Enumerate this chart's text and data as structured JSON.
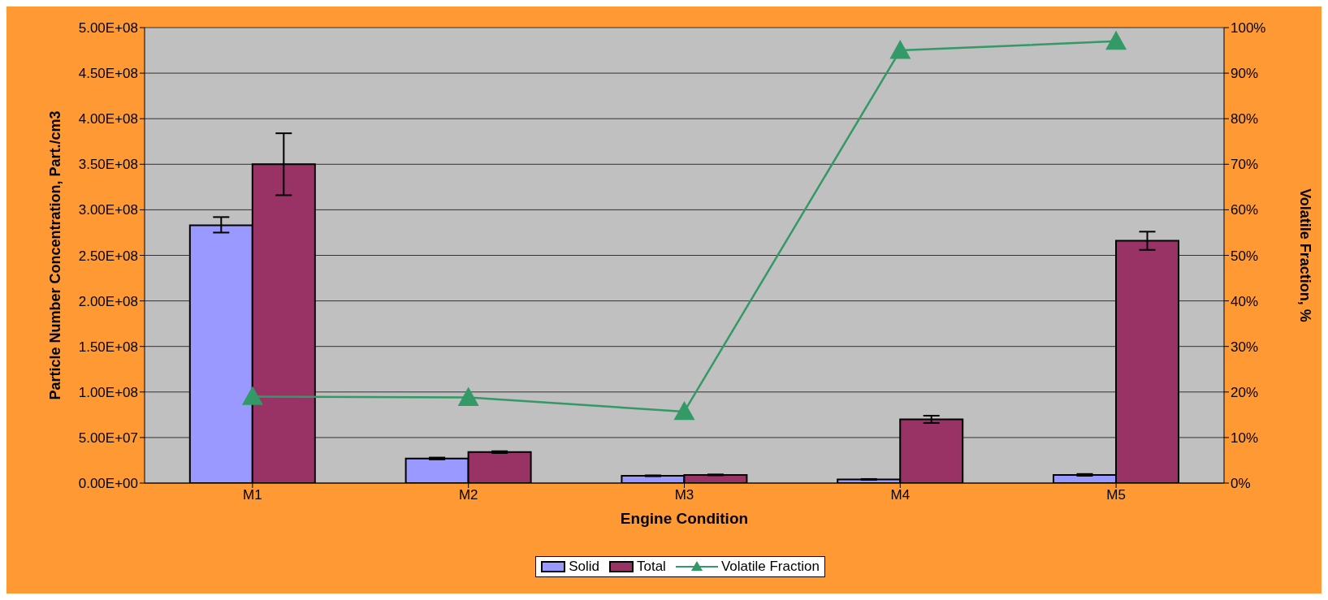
{
  "chart_data": {
    "type": "bar",
    "xlabel": "Engine Condition",
    "ylabel": "Particle Number Concentration, Part./cm3",
    "y2label": "Volatile Fraction, %",
    "categories": [
      "M1",
      "M2",
      "M3",
      "M4",
      "M5"
    ],
    "series": [
      {
        "name": "Solid",
        "color": "#9999ff",
        "values": [
          283000000,
          27000000,
          8000000,
          4000000,
          9000000
        ],
        "errors": [
          [
            275000000,
            292000000
          ],
          [
            26000000,
            28000000
          ],
          [
            7500000,
            8500000
          ],
          [
            3500000,
            4500000
          ],
          [
            8000000,
            10000000
          ]
        ]
      },
      {
        "name": "Total",
        "color": "#993366",
        "values": [
          350000000,
          34000000,
          9000000,
          70000000,
          266000000
        ],
        "errors": [
          [
            316000000,
            384000000
          ],
          [
            33000000,
            35000000
          ],
          [
            8500000,
            9500000
          ],
          [
            66000000,
            74000000
          ],
          [
            256000000,
            276000000
          ]
        ]
      },
      {
        "name": "Volatile Fraction",
        "type": "line",
        "axis": "y2",
        "color": "#339966",
        "marker": "triangle",
        "values": [
          19,
          18.8,
          15.7,
          95,
          97
        ]
      }
    ],
    "ylim": [
      0,
      500000000
    ],
    "yticks": [
      {
        "value": 0,
        "label": "0.00E+00"
      },
      {
        "value": 50000000,
        "label": "5.00E+07"
      },
      {
        "value": 100000000,
        "label": "1.00E+08"
      },
      {
        "value": 150000000,
        "label": "1.50E+08"
      },
      {
        "value": 200000000,
        "label": "2.00E+08"
      },
      {
        "value": 250000000,
        "label": "2.50E+08"
      },
      {
        "value": 300000000,
        "label": "3.00E+08"
      },
      {
        "value": 350000000,
        "label": "3.50E+08"
      },
      {
        "value": 400000000,
        "label": "4.00E+08"
      },
      {
        "value": 450000000,
        "label": "4.50E+08"
      },
      {
        "value": 500000000,
        "label": "5.00E+08"
      }
    ],
    "y2lim": [
      0,
      100
    ],
    "y2ticks": [
      {
        "value": 0,
        "label": "0%"
      },
      {
        "value": 10,
        "label": "10%"
      },
      {
        "value": 20,
        "label": "20%"
      },
      {
        "value": 30,
        "label": "30%"
      },
      {
        "value": 40,
        "label": "40%"
      },
      {
        "value": 50,
        "label": "50%"
      },
      {
        "value": 60,
        "label": "60%"
      },
      {
        "value": 70,
        "label": "70%"
      },
      {
        "value": 80,
        "label": "80%"
      },
      {
        "value": 90,
        "label": "90%"
      },
      {
        "value": 100,
        "label": "100%"
      }
    ],
    "grid": "y",
    "legend": "bottom"
  }
}
